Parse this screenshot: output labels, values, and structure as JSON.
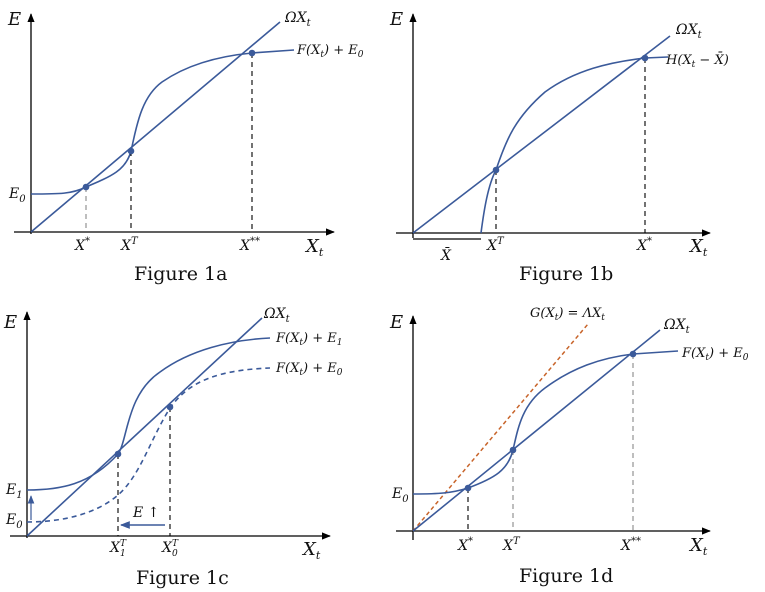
{
  "panels": {
    "a": {
      "caption": "Figure 1a",
      "y_axis": "E",
      "x_axis": "X",
      "x_axis_sub": "t",
      "line_label": "ΩX",
      "line_label_sub": "t",
      "curve_label": "F(X",
      "curve_label_sub": "t",
      "curve_label_tail": ") + E",
      "curve_label_tail_sub": "0",
      "intercept": "E",
      "intercept_sub": "0",
      "tick1": "X",
      "tick1_sup": "*",
      "tick2": "X",
      "tick2_sup": "T",
      "tick3": "X",
      "tick3_sup": "**"
    },
    "b": {
      "caption": "Figure 1b",
      "y_axis": "E",
      "x_axis": "X",
      "x_axis_sub": "t",
      "line_label": "ΩX",
      "line_label_sub": "t",
      "curve_label": "H(X",
      "curve_label_sub": "t",
      "curve_label_tail": " − X̄)",
      "xbar": "X̄",
      "tick2": "X",
      "tick2_sup": "T",
      "tick3": "X",
      "tick3_sup": "*"
    },
    "c": {
      "caption": "Figure 1c",
      "y_axis": "E",
      "x_axis": "X",
      "x_axis_sub": "t",
      "line_label": "ΩX",
      "line_label_sub": "t",
      "curve1_label": "F(X",
      "curve1_label_sub": "t",
      "curve1_label_tail": ") + E",
      "curve1_label_tail_sub": "1",
      "curve0_label": "F(X",
      "curve0_label_sub": "t",
      "curve0_label_tail": ") + E",
      "curve0_label_tail_sub": "0",
      "e1": "E",
      "e1_sub": "1",
      "e0": "E",
      "e0_sub": "0",
      "tick1": "X",
      "tick1_sup": "T",
      "tick1_sub": "1",
      "tick2": "X",
      "tick2_sup": "T",
      "tick2_sub": "0",
      "arrow_label": "E ↑"
    },
    "d": {
      "caption": "Figure 1d",
      "y_axis": "E",
      "x_axis": "X",
      "x_axis_sub": "t",
      "line_label": "ΩX",
      "line_label_sub": "t",
      "g_label": "G(X",
      "g_label_sub": "t",
      "g_label_tail": ") = ΛX",
      "g_label_tail_sub": "t",
      "curve_label": "F(X",
      "curve_label_sub": "t",
      "curve_label_tail": ") + E",
      "curve_label_tail_sub": "0",
      "intercept": "E",
      "intercept_sub": "0",
      "tick1": "X",
      "tick1_sup": "*",
      "tick2": "X",
      "tick2_sup": "T",
      "tick3": "X",
      "tick3_sup": "**"
    }
  },
  "colors": {
    "curve": "#3b5a9a",
    "g_line": "#c8642a"
  }
}
